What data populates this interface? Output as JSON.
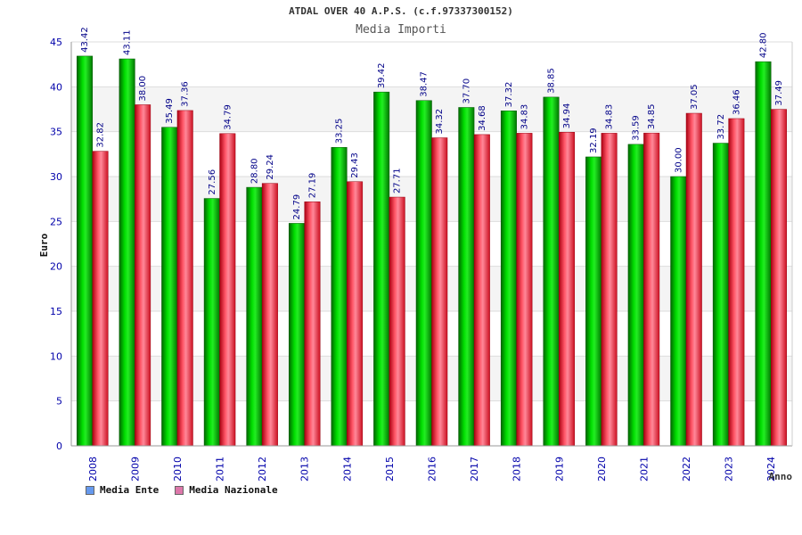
{
  "chart_data": {
    "type": "bar",
    "title": "ATDAL OVER 40 A.P.S. (c.f.97337300152)",
    "subtitle": "Media Importi",
    "xlabel": "Anno",
    "ylabel": "Euro",
    "ylim": [
      0,
      45
    ],
    "yticks": [
      0,
      5,
      10,
      15,
      20,
      25,
      30,
      35,
      40,
      45
    ],
    "grid": true,
    "legend_position": "bottom-left",
    "categories": [
      "2008",
      "2009",
      "2010",
      "2011",
      "2012",
      "2013",
      "2014",
      "2015",
      "2016",
      "2017",
      "2018",
      "2019",
      "2020",
      "2021",
      "2022",
      "2023",
      "2024"
    ],
    "series": [
      {
        "name": "Media Ente",
        "color": "#00aa00",
        "legend_color": "#6699ee",
        "values": [
          43.42,
          43.11,
          35.49,
          27.56,
          28.8,
          24.79,
          33.25,
          39.42,
          38.47,
          37.7,
          37.32,
          38.85,
          32.19,
          33.59,
          30.0,
          33.72,
          42.8
        ]
      },
      {
        "name": "Media Nazionale",
        "color": "#ee3344",
        "legend_color": "#dd77aa",
        "values": [
          32.82,
          38.0,
          37.36,
          34.79,
          29.24,
          27.19,
          29.43,
          27.71,
          34.32,
          34.68,
          34.83,
          34.94,
          34.83,
          34.85,
          37.05,
          36.46,
          37.49
        ]
      }
    ]
  }
}
